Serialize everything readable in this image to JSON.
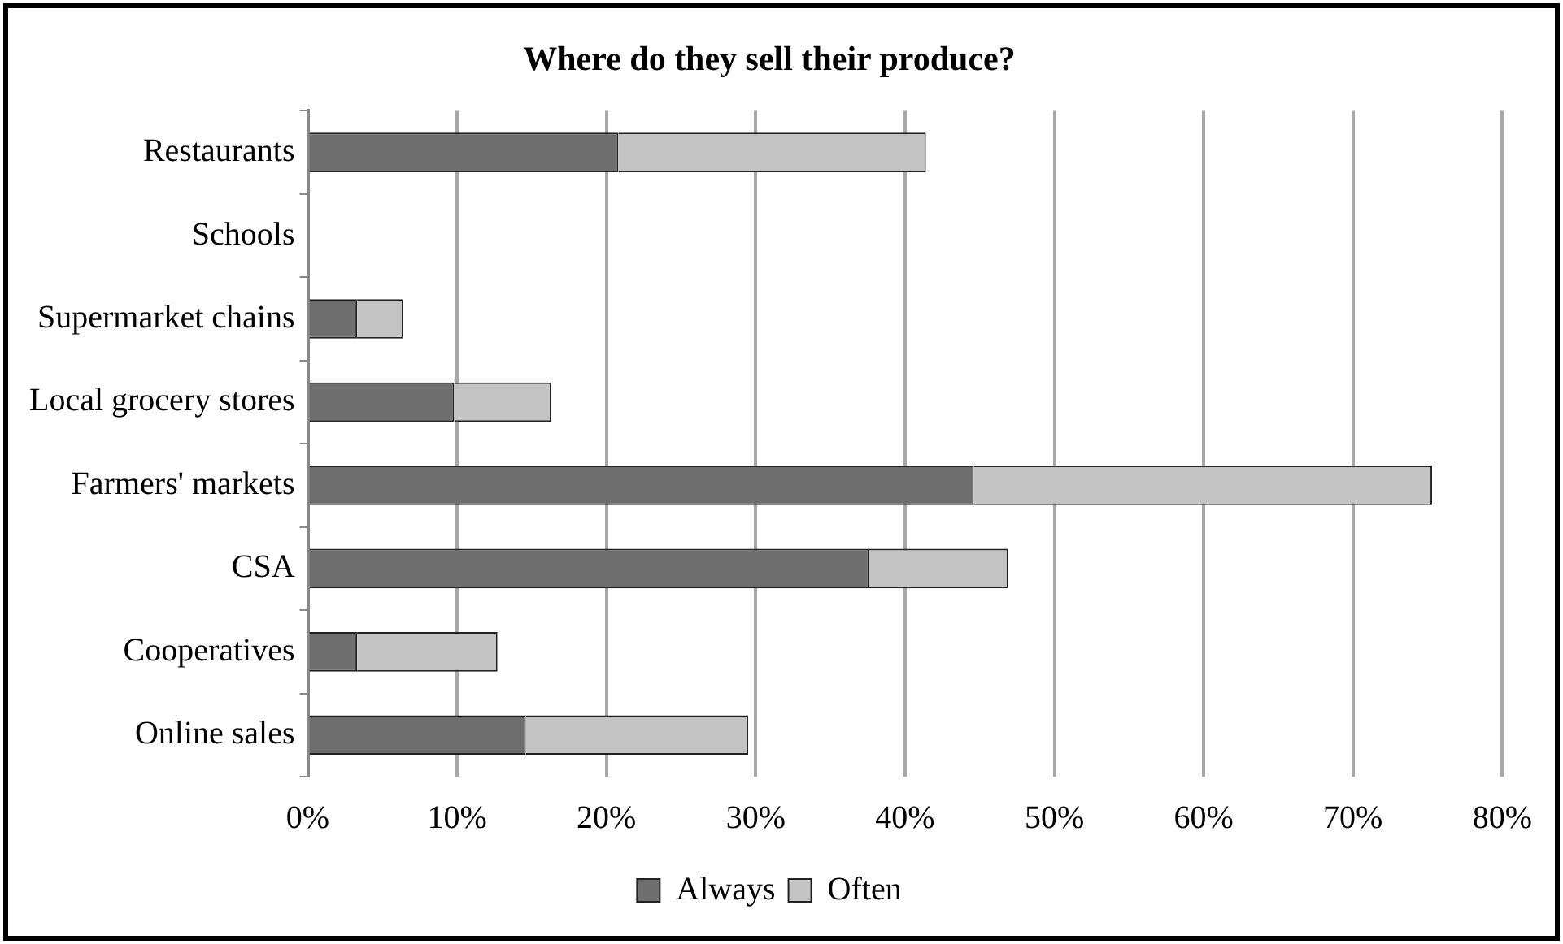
{
  "chart_data": {
    "type": "bar",
    "orientation": "horizontal",
    "stacked": true,
    "title": "Where do they sell their produce?",
    "categories": [
      "Restaurants",
      "Schools",
      "Supermarket chains",
      "Local grocery stores",
      "Farmers' markets",
      "CSA",
      "Cooperatives",
      "Online sales"
    ],
    "series": [
      {
        "name": "Always",
        "color": "#6e6e6e",
        "values": [
          20.8,
          0,
          3.3,
          9.8,
          44.6,
          37.6,
          3.3,
          14.6
        ]
      },
      {
        "name": "Often",
        "color": "#c4c4c4",
        "values": [
          20.6,
          0,
          3.1,
          6.5,
          30.7,
          9.3,
          9.4,
          14.9
        ]
      }
    ],
    "xlim": [
      0,
      80
    ],
    "xticks": [
      {
        "value": 0,
        "label": "0%"
      },
      {
        "value": 10,
        "label": "10%"
      },
      {
        "value": 20,
        "label": "20%"
      },
      {
        "value": 30,
        "label": "30%"
      },
      {
        "value": 40,
        "label": "40%"
      },
      {
        "value": 50,
        "label": "50%"
      },
      {
        "value": 60,
        "label": "60%"
      },
      {
        "value": 70,
        "label": "70%"
      },
      {
        "value": 80,
        "label": "80%"
      }
    ],
    "grid": "x",
    "legend": "bottom"
  }
}
